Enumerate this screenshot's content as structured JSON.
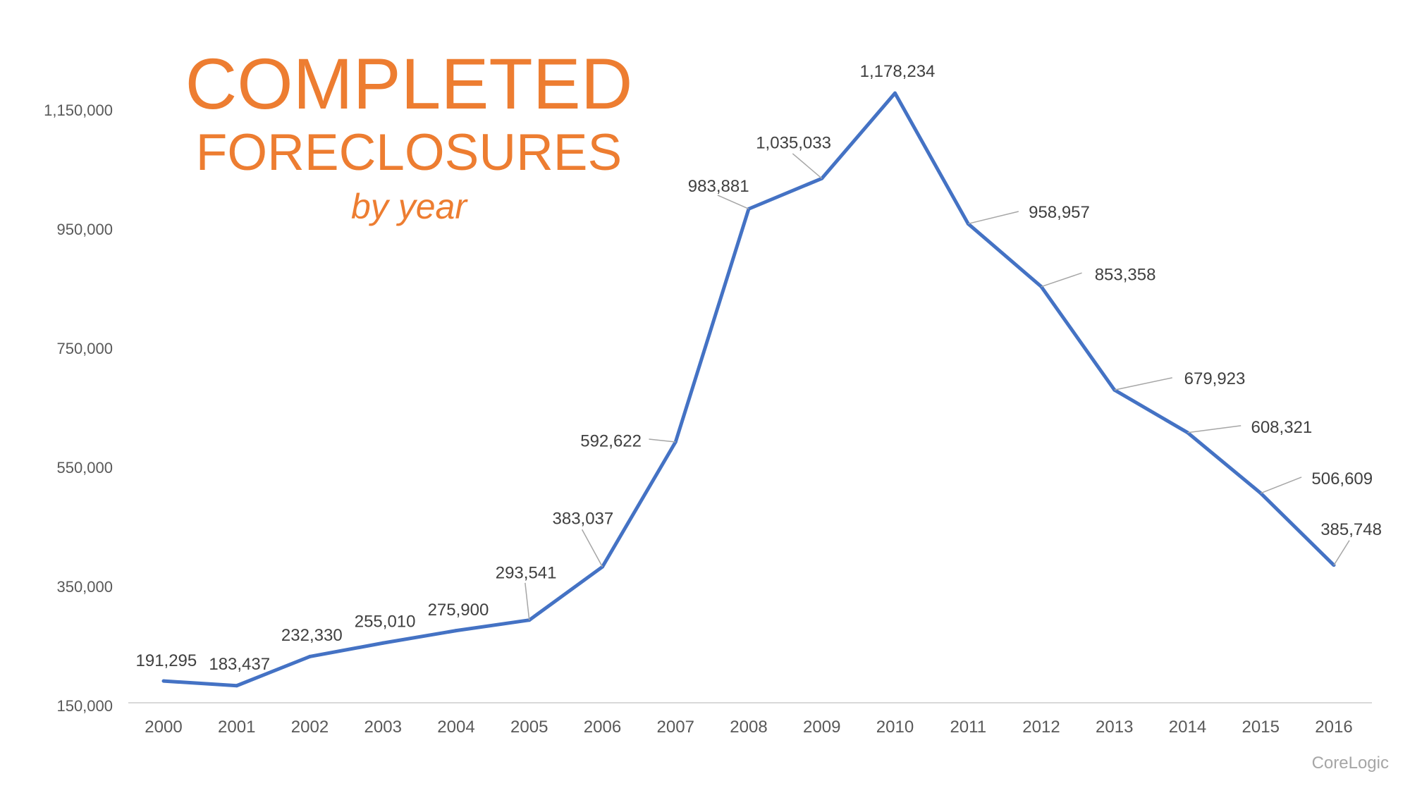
{
  "chart_data": {
    "type": "line",
    "title": "COMPLETED",
    "subtitle": "FORECLOSURES",
    "subtitle2": "by year",
    "source": "CoreLogic",
    "xlabel": "",
    "ylabel": "",
    "categories": [
      "2000",
      "2001",
      "2002",
      "2003",
      "2004",
      "2005",
      "2006",
      "2007",
      "2008",
      "2009",
      "2010",
      "2011",
      "2012",
      "2013",
      "2014",
      "2015",
      "2016"
    ],
    "values": [
      191295,
      183437,
      232330,
      255010,
      275900,
      293541,
      383037,
      592622,
      983881,
      1035033,
      1178234,
      958957,
      853358,
      679923,
      608321,
      506609,
      385748
    ],
    "data_labels": [
      "191,295",
      "183,437",
      "232,330",
      "255,010",
      "275,900",
      "293,541",
      "383,037",
      "592,622",
      "983,881",
      "1,035,033",
      "1,178,234",
      "958,957",
      "853,358",
      "679,923",
      "608,321",
      "506,609",
      "385,748"
    ],
    "yticks": [
      150000,
      350000,
      550000,
      750000,
      950000,
      1150000
    ],
    "ytick_labels": [
      "150,000",
      "350,000",
      "550,000",
      "750,000",
      "950,000",
      "1,150,000"
    ],
    "ylim": [
      150000,
      1250000
    ],
    "grid": false,
    "legend": "none",
    "colors": {
      "line": "#4472C4",
      "title": "#ED7D31",
      "text": "#595959",
      "leader": "#a6a6a6"
    }
  }
}
